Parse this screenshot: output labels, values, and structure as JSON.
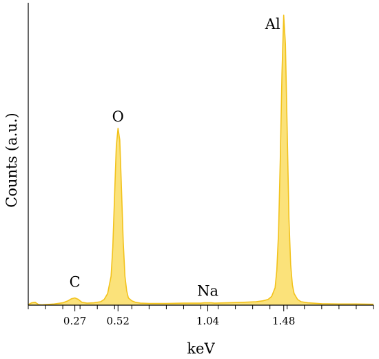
{
  "chart_data": {
    "type": "area",
    "title": "",
    "xlabel": "keV",
    "ylabel": "Counts (a.u.)",
    "xlim": [
      0.0,
      2.0
    ],
    "ylim": [
      0,
      100
    ],
    "grid": false,
    "legend": "none",
    "x_tick_labels": [
      {
        "x": 0.27,
        "label": "0.27"
      },
      {
        "x": 0.52,
        "label": "0.52"
      },
      {
        "x": 1.04,
        "label": "1.04"
      },
      {
        "x": 1.48,
        "label": "1.48"
      }
    ],
    "x_minor_tick_step": 0.1,
    "peaks": [
      {
        "label": "C",
        "x": 0.27,
        "height": 2.5
      },
      {
        "label": "O",
        "x": 0.52,
        "height": 61
      },
      {
        "label": "Na",
        "x": 1.04,
        "height": 0.8
      },
      {
        "label": "Al",
        "x": 1.48,
        "height": 100
      }
    ],
    "series": [
      {
        "color_fill": "#fbe27a",
        "color_line": "#f2c21b",
        "x": [
          0.0,
          0.02,
          0.04,
          0.05,
          0.06,
          0.08,
          0.1,
          0.15,
          0.2,
          0.23,
          0.25,
          0.27,
          0.29,
          0.31,
          0.34,
          0.38,
          0.42,
          0.44,
          0.46,
          0.48,
          0.49,
          0.5,
          0.51,
          0.52,
          0.53,
          0.54,
          0.55,
          0.56,
          0.57,
          0.58,
          0.6,
          0.62,
          0.65,
          0.7,
          0.8,
          0.9,
          1.0,
          1.02,
          1.04,
          1.06,
          1.08,
          1.15,
          1.25,
          1.32,
          1.36,
          1.39,
          1.41,
          1.43,
          1.44,
          1.45,
          1.46,
          1.47,
          1.48,
          1.49,
          1.5,
          1.51,
          1.52,
          1.53,
          1.54,
          1.56,
          1.58,
          1.62,
          1.7,
          1.8,
          1.9,
          2.0
        ],
        "y": [
          0.2,
          0.8,
          1.0,
          0.6,
          0.2,
          0.1,
          0.2,
          0.4,
          0.8,
          1.5,
          2.2,
          2.5,
          2.0,
          1.0,
          0.7,
          0.8,
          1.2,
          2.0,
          4.0,
          10.0,
          20.0,
          38.0,
          55.0,
          61.0,
          57.0,
          40.0,
          22.0,
          10.0,
          5.0,
          2.5,
          1.5,
          1.0,
          0.7,
          0.6,
          0.6,
          0.7,
          0.7,
          0.8,
          0.8,
          0.8,
          0.7,
          0.8,
          1.0,
          1.2,
          1.5,
          2.0,
          3.0,
          6.0,
          12.0,
          25.0,
          50.0,
          80.0,
          100.0,
          90.0,
          60.0,
          30.0,
          14.0,
          7.0,
          4.0,
          2.0,
          1.2,
          0.8,
          0.5,
          0.4,
          0.4,
          0.3
        ]
      }
    ]
  }
}
